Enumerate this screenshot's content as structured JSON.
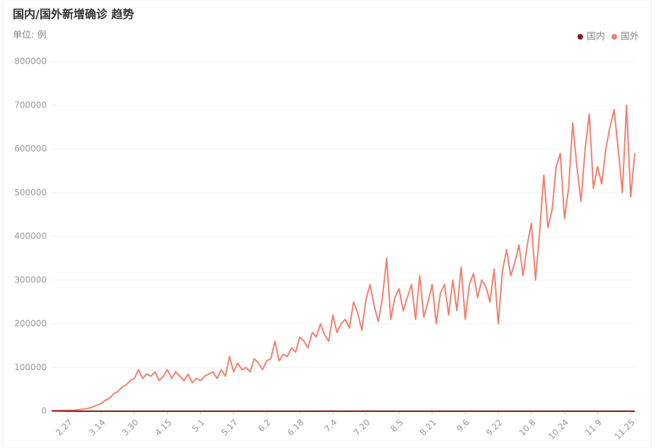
{
  "chart_data": {
    "type": "line",
    "title": "国内/国外新增确诊 趋势",
    "subtitle": "单位: 例",
    "categories": [
      null,
      null,
      null,
      null,
      "2.27",
      null,
      null,
      null,
      null,
      null,
      null,
      null,
      "3.14",
      null,
      null,
      null,
      null,
      null,
      null,
      null,
      "3.30",
      null,
      null,
      null,
      null,
      null,
      null,
      null,
      "4.15",
      null,
      null,
      null,
      null,
      null,
      null,
      null,
      "5.1",
      null,
      null,
      null,
      null,
      null,
      null,
      null,
      "5.17",
      null,
      null,
      null,
      null,
      null,
      null,
      null,
      "6.2",
      null,
      null,
      null,
      null,
      null,
      null,
      null,
      "6.18",
      null,
      null,
      null,
      null,
      null,
      null,
      null,
      "7.4",
      null,
      null,
      null,
      null,
      null,
      null,
      null,
      "7.20",
      null,
      null,
      null,
      null,
      null,
      null,
      null,
      "8.5",
      null,
      null,
      null,
      null,
      null,
      null,
      null,
      "8.21",
      null,
      null,
      null,
      null,
      null,
      null,
      null,
      "9.6",
      null,
      null,
      null,
      null,
      null,
      null,
      null,
      "9.22",
      null,
      null,
      null,
      null,
      null,
      null,
      null,
      "10.8",
      null,
      null,
      null,
      null,
      null,
      null,
      null,
      "10.24",
      null,
      null,
      null,
      null,
      null,
      null,
      null,
      "11.9",
      null,
      null,
      null,
      null,
      null,
      null,
      null,
      "11.25",
      null
    ],
    "series": [
      {
        "name": "国内",
        "color": "#8b1a1a",
        "values": [
          800,
          500,
          400,
          300,
          200,
          150,
          100,
          80,
          60,
          50,
          40,
          40,
          30,
          40,
          50,
          60,
          50,
          40,
          50,
          60,
          50,
          40,
          50,
          60,
          40,
          30,
          40,
          30,
          20,
          20,
          10,
          10,
          20,
          10,
          10,
          10,
          10,
          10,
          20,
          10,
          10,
          10,
          20,
          10,
          10,
          10,
          10,
          20,
          30,
          40,
          30,
          20,
          20,
          20,
          30,
          30,
          20,
          20,
          10,
          10,
          20,
          20,
          30,
          40,
          60,
          80,
          100,
          100,
          120,
          100,
          90,
          80,
          70,
          60,
          80,
          100,
          120,
          100,
          90,
          80,
          60,
          50,
          40,
          30,
          30,
          30,
          20,
          20,
          20,
          20,
          20,
          20,
          20,
          20,
          20,
          20,
          20,
          20,
          20,
          20,
          20,
          20,
          20,
          20,
          20,
          20,
          20,
          20,
          20,
          20,
          20,
          20,
          20,
          20,
          20,
          20,
          20,
          20,
          20,
          20,
          20,
          20,
          20,
          20,
          20,
          20,
          20,
          30,
          30,
          30,
          30,
          30,
          30,
          30,
          30,
          30,
          30,
          30,
          30,
          30,
          30,
          30
        ]
      },
      {
        "name": "国外",
        "color": "#f08070",
        "values": [
          1000,
          1000,
          1500,
          1500,
          2000,
          2000,
          3000,
          4000,
          5000,
          7000,
          10000,
          14000,
          18000,
          25000,
          30000,
          40000,
          45000,
          55000,
          60000,
          70000,
          75000,
          95000,
          75000,
          85000,
          80000,
          90000,
          70000,
          80000,
          95000,
          75000,
          90000,
          80000,
          70000,
          85000,
          65000,
          75000,
          70000,
          80000,
          85000,
          90000,
          75000,
          95000,
          80000,
          125000,
          90000,
          110000,
          95000,
          100000,
          90000,
          120000,
          110000,
          95000,
          115000,
          120000,
          160000,
          115000,
          130000,
          125000,
          145000,
          135000,
          170000,
          160000,
          145000,
          180000,
          170000,
          200000,
          175000,
          160000,
          220000,
          180000,
          200000,
          210000,
          190000,
          250000,
          225000,
          185000,
          255000,
          290000,
          240000,
          205000,
          260000,
          350000,
          210000,
          260000,
          280000,
          230000,
          260000,
          290000,
          210000,
          310000,
          215000,
          250000,
          290000,
          200000,
          270000,
          290000,
          220000,
          300000,
          230000,
          330000,
          210000,
          290000,
          315000,
          260000,
          300000,
          285000,
          250000,
          325000,
          200000,
          320000,
          370000,
          310000,
          340000,
          380000,
          310000,
          380000,
          430000,
          300000,
          410000,
          540000,
          420000,
          460000,
          560000,
          590000,
          440000,
          510000,
          660000,
          560000,
          480000,
          600000,
          680000,
          510000,
          560000,
          520000,
          600000,
          650000,
          690000,
          600000,
          500000,
          700000,
          490000,
          590000
        ]
      }
    ],
    "ylim": [
      0,
      800000
    ],
    "yticks": [
      0,
      100000,
      200000,
      300000,
      400000,
      500000,
      600000,
      700000,
      800000
    ],
    "grid": true,
    "legend": "top-right"
  }
}
